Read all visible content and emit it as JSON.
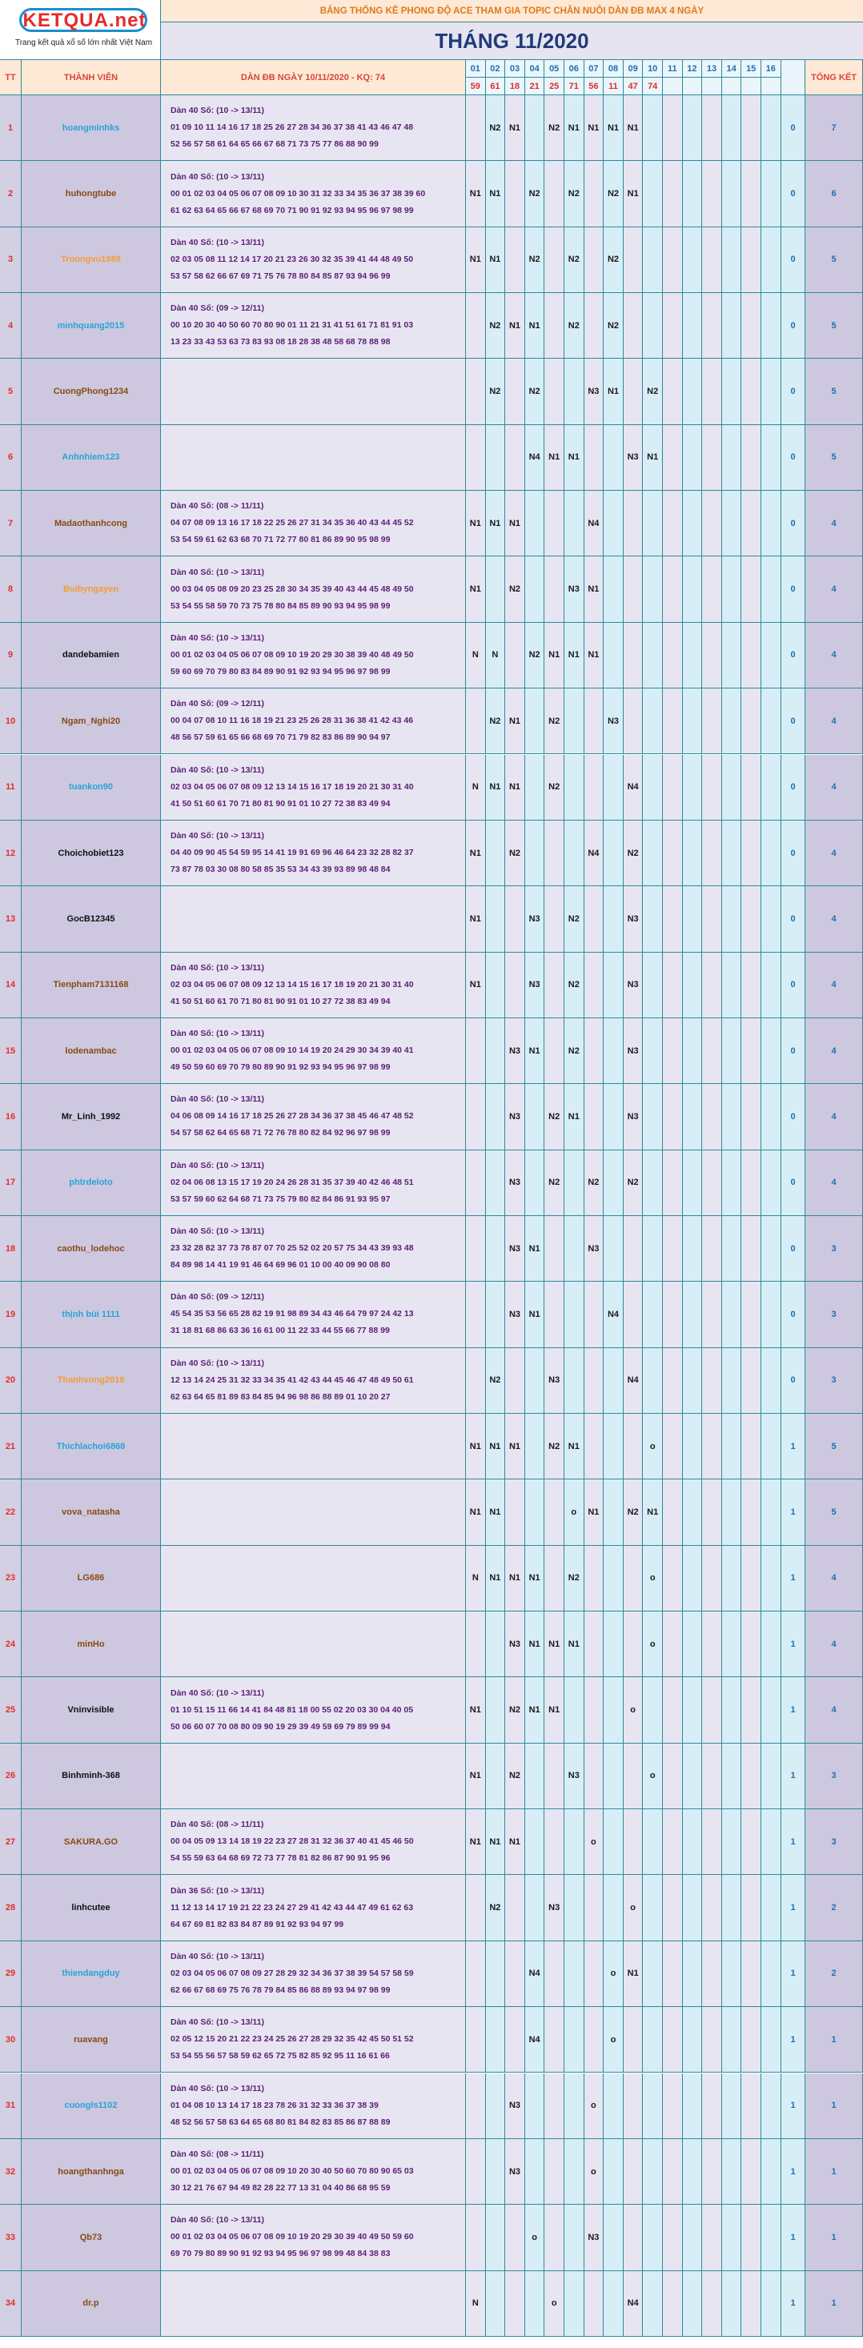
{
  "logo": {
    "brand": "KETQUA.net",
    "tagline": "Trang kết quả xổ số lớn nhất Việt Nam"
  },
  "banner": "BẢNG THỐNG KÊ PHONG ĐỘ ACE THAM GIA TOPIC CHĂN NUÔI DÀN ĐB MAX 4 NGÀY",
  "month": "THÁNG 11/2020",
  "headers": {
    "tt": "TT",
    "member": "THÀNH VIÊN",
    "selection": "DÀN ĐB NGÀY 10/11/2020 - KQ: 74",
    "total": "TỔNG KẾT"
  },
  "days": [
    "01",
    "02",
    "03",
    "04",
    "05",
    "06",
    "07",
    "08",
    "09",
    "10",
    "11",
    "12",
    "13",
    "14",
    "15",
    "16"
  ],
  "results": [
    "59",
    "61",
    "18",
    "21",
    "25",
    "71",
    "56",
    "11",
    "47",
    "74",
    "",
    "",
    "",
    "",
    "",
    ""
  ],
  "colors": {
    "blue": "#29a3d6",
    "brown": "#8a4a10",
    "black": "#111111",
    "orange": "#f39c35",
    "purple": "#5b1f73"
  },
  "rows": [
    {
      "tt": "1",
      "name": "hoangminhks",
      "color": "blue",
      "sel_title": "Dàn 40 Số: (10 -> 13/11)",
      "sel_l1": "01 09 10 11 14 16 17 18 25 26 27 28 34 36 37 38 41 43 46 47 48",
      "sel_l2": "52 56 57 58 61 64 65 66 67 68 71 73 75 77 86 88 90 99",
      "marks": [
        "",
        "N2",
        "N1",
        "",
        "N2",
        "N1",
        "N1",
        "N1",
        "N1",
        "",
        "",
        "",
        "",
        "",
        "",
        ""
      ],
      "win": "0",
      "total": "7"
    },
    {
      "tt": "2",
      "name": "huhongtube",
      "color": "brown",
      "sel_title": "Dàn 40 Số: (10 -> 13/11)",
      "sel_l1": "00 01 02 03 04 05 06 07 08 09 10 30 31 32 33 34 35 36 37 38 39 60",
      "sel_l2": "61 62 63 64 65 66 67 68 69 70 71 90 91 92 93 94 95 96 97 98 99",
      "marks": [
        "N1",
        "N1",
        "",
        "N2",
        "",
        "N2",
        "",
        "N2",
        "N1",
        "",
        "",
        "",
        "",
        "",
        "",
        ""
      ],
      "win": "0",
      "total": "6"
    },
    {
      "tt": "3",
      "name": "Truongvu1988",
      "color": "orange",
      "sel_title": "Dàn 40 Số: (10 -> 13/11)",
      "sel_l1": "02 03 05 08 11 12 14 17 20 21 23 26 30 32 35 39 41 44 48 49 50",
      "sel_l2": "53 57 58 62 66 67 69 71 75 76 78 80 84 85 87 93 94 96 99",
      "marks": [
        "N1",
        "N1",
        "",
        "N2",
        "",
        "N2",
        "",
        "N2",
        "",
        "",
        "",
        "",
        "",
        "",
        "",
        ""
      ],
      "win": "0",
      "total": "5"
    },
    {
      "tt": "4",
      "name": "minhquang2015",
      "color": "blue",
      "sel_title": "Dàn 40 Số: (09 -> 12/11)",
      "sel_l1": "00 10 20 30 40 50 60 70 80 90 01 11 21 31 41 51 61 71 81 91 03",
      "sel_l2": "13 23 33 43 53 63 73 83 93 08 18 28 38 48 58 68 78 88 98",
      "marks": [
        "",
        "N2",
        "N1",
        "N1",
        "",
        "N2",
        "",
        "N2",
        "",
        "",
        "",
        "",
        "",
        "",
        "",
        ""
      ],
      "win": "0",
      "total": "5"
    },
    {
      "tt": "5",
      "name": "CuongPhong1234",
      "color": "brown",
      "sel_title": "",
      "sel_l1": "",
      "sel_l2": "",
      "marks": [
        "",
        "N2",
        "",
        "N2",
        "",
        "",
        "N3",
        "N1",
        "",
        "N2",
        "",
        "",
        "",
        "",
        "",
        ""
      ],
      "win": "0",
      "total": "5"
    },
    {
      "tt": "6",
      "name": "Anhnhiem123",
      "color": "blue",
      "sel_title": "",
      "sel_l1": "",
      "sel_l2": "",
      "marks": [
        "",
        "",
        "",
        "N4",
        "N1",
        "N1",
        "",
        "",
        "N3",
        "N1",
        "",
        "",
        "",
        "",
        "",
        ""
      ],
      "win": "0",
      "total": "5"
    },
    {
      "tt": "7",
      "name": "Madaothanhcong",
      "color": "brown",
      "sel_title": "Dàn 40 Số: (08 -> 11/11)",
      "sel_l1": "04 07 08 09 13 16 17 18 22 25 26 27 31 34 35 36 40 43 44 45 52",
      "sel_l2": "53 54 59 61 62 63 68 70 71 72 77 80 81 86 89 90 95 98 99",
      "marks": [
        "N1",
        "N1",
        "N1",
        "",
        "",
        "",
        "N4",
        "",
        "",
        "",
        "",
        "",
        "",
        "",
        "",
        ""
      ],
      "win": "0",
      "total": "4"
    },
    {
      "tt": "8",
      "name": "Buibyngayen",
      "color": "orange",
      "sel_title": "Dàn 40 Số: (10 -> 13/11)",
      "sel_l1": "00 03 04 05 08 09 20 23 25 28 30 34 35 39 40 43 44 45 48 49 50",
      "sel_l2": "53 54 55 58 59 70 73 75 78 80 84 85 89 90 93 94 95 98 99",
      "marks": [
        "N1",
        "",
        "N2",
        "",
        "",
        "N3",
        "N1",
        "",
        "",
        "",
        "",
        "",
        "",
        "",
        "",
        ""
      ],
      "win": "0",
      "total": "4"
    },
    {
      "tt": "9",
      "name": "dandebamien",
      "color": "black",
      "sel_title": "Dàn 40 Số: (10 -> 13/11)",
      "sel_l1": "00 01 02 03 04 05 06 07 08 09 10 19 20 29 30 38 39 40 48 49 50",
      "sel_l2": "59 60 69 70 79 80 83 84 89 90 91 92 93 94 95 96 97 98 99",
      "marks": [
        "N",
        "N",
        "",
        "N2",
        "N1",
        "N1",
        "N1",
        "",
        "",
        "",
        "",
        "",
        "",
        "",
        "",
        ""
      ],
      "win": "0",
      "total": "4"
    },
    {
      "tt": "10",
      "name": "Ngam_Nghi20",
      "color": "brown",
      "sel_title": "Dàn 40 Số: (09 -> 12/11)",
      "sel_l1": "00 04 07 08 10 11 16 18 19 21 23 25 26 28 31 36 38 41 42 43 46",
      "sel_l2": "48 56 57 59 61 65 66 68 69 70 71 79 82 83 86 89 90 94 97",
      "marks": [
        "",
        "N2",
        "N1",
        "",
        "N2",
        "",
        "",
        "N3",
        "",
        "",
        "",
        "",
        "",
        "",
        "",
        ""
      ],
      "win": "0",
      "total": "4"
    },
    {
      "tt": "11",
      "name": "tuankon90",
      "color": "blue",
      "sel_title": "Dàn 40 Số: (10 -> 13/11)",
      "sel_l1": "02 03 04 05 06 07 08 09 12 13 14 15 16 17 18 19 20 21 30 31 40",
      "sel_l2": "41 50 51 60 61 70 71 80 81 90 91 01 10 27 72 38 83 49 94",
      "marks": [
        "N",
        "N1",
        "N1",
        "",
        "N2",
        "",
        "",
        "",
        "N4",
        "",
        "",
        "",
        "",
        "",
        "",
        ""
      ],
      "win": "0",
      "total": "4"
    },
    {
      "tt": "12",
      "name": "Choichobiet123",
      "color": "black",
      "sel_title": "Dàn 40 Số: (10 -> 13/11)",
      "sel_l1": "04 40 09 90 45 54 59 95 14 41 19 91 69 96 46 64 23 32 28 82 37",
      "sel_l2": "73 87 78 03 30 08 80 58 85 35 53 34 43 39 93 89 98 48 84",
      "marks": [
        "N1",
        "",
        "N2",
        "",
        "",
        "",
        "N4",
        "",
        "N2",
        "",
        "",
        "",
        "",
        "",
        "",
        ""
      ],
      "win": "0",
      "total": "4"
    },
    {
      "tt": "13",
      "name": "GocB12345",
      "color": "black",
      "sel_title": "",
      "sel_l1": "",
      "sel_l2": "",
      "marks": [
        "N1",
        "",
        "",
        "N3",
        "",
        "N2",
        "",
        "",
        "N3",
        "",
        "",
        "",
        "",
        "",
        "",
        ""
      ],
      "win": "0",
      "total": "4"
    },
    {
      "tt": "14",
      "name": "Tienpham7131168",
      "color": "brown",
      "sel_title": "Dàn 40 Số: (10 -> 13/11)",
      "sel_l1": "02 03 04 05 06 07 08 09 12 13 14 15 16 17 18 19 20 21 30 31 40",
      "sel_l2": "41 50 51 60 61 70 71 80 81 90 91 01 10 27 72 38 83 49 94",
      "marks": [
        "N1",
        "",
        "",
        "N3",
        "",
        "N2",
        "",
        "",
        "N3",
        "",
        "",
        "",
        "",
        "",
        "",
        ""
      ],
      "win": "0",
      "total": "4"
    },
    {
      "tt": "15",
      "name": "lodenambac",
      "color": "brown",
      "sel_title": "Dàn 40 Số: (10 -> 13/11)",
      "sel_l1": "00 01 02 03 04 05 06 07 08 09 10 14 19 20 24 29 30 34 39 40 41",
      "sel_l2": "49 50 59 60 69 70 79 80 89 90 91 92 93 94 95 96 97 98 99",
      "marks": [
        "",
        "",
        "N3",
        "N1",
        "",
        "N2",
        "",
        "",
        "N3",
        "",
        "",
        "",
        "",
        "",
        "",
        ""
      ],
      "win": "0",
      "total": "4"
    },
    {
      "tt": "16",
      "name": "Mr_Linh_1992",
      "color": "black",
      "sel_title": "Dàn 40 Số: (10 -> 13/11)",
      "sel_l1": "04 06 08 09 14 16 17 18 25 26 27 28 34 36 37 38 45 46 47 48 52",
      "sel_l2": "54 57 58 62 64 65 68 71 72 76 78 80 82 84 92 96 97 98 99",
      "marks": [
        "",
        "",
        "N3",
        "",
        "N2",
        "N1",
        "",
        "",
        "N3",
        "",
        "",
        "",
        "",
        "",
        "",
        ""
      ],
      "win": "0",
      "total": "4"
    },
    {
      "tt": "17",
      "name": "phtrdeloto",
      "color": "blue",
      "sel_title": "Dàn 40 Số: (10 -> 13/11)",
      "sel_l1": "02 04 06 08 13 15 17 19 20 24 26 28 31 35 37 39 40 42 46 48 51",
      "sel_l2": "53 57 59 60 62 64 68 71 73 75 79 80 82 84 86 91 93 95 97",
      "marks": [
        "",
        "",
        "N3",
        "",
        "N2",
        "",
        "N2",
        "",
        "N2",
        "",
        "",
        "",
        "",
        "",
        "",
        ""
      ],
      "win": "0",
      "total": "4"
    },
    {
      "tt": "18",
      "name": "caothu_lodehoc",
      "color": "brown",
      "sel_title": "Dàn 40 Số: (10 -> 13/11)",
      "sel_l1": "23 32 28 82 37 73 78 87 07 70 25 52 02 20 57 75 34 43 39 93 48",
      "sel_l2": "84 89 98 14 41 19 91 46 64 69 96 01 10 00 40 09 90 08 80",
      "marks": [
        "",
        "",
        "N3",
        "N1",
        "",
        "",
        "N3",
        "",
        "",
        "",
        "",
        "",
        "",
        "",
        "",
        ""
      ],
      "win": "0",
      "total": "3"
    },
    {
      "tt": "19",
      "name": "thịnh bùi 1111",
      "color": "blue",
      "sel_title": "Dàn 40 Số: (09 -> 12/11)",
      "sel_l1": "45 54 35 53 56 65 28 82 19 91 98 89 34 43 46 64 79 97 24 42 13",
      "sel_l2": "31 18 81 68 86 63 36 16 61 00 11 22 33 44 55 66 77 88 99",
      "marks": [
        "",
        "",
        "N3",
        "N1",
        "",
        "",
        "",
        "N4",
        "",
        "",
        "",
        "",
        "",
        "",
        "",
        ""
      ],
      "win": "0",
      "total": "3"
    },
    {
      "tt": "20",
      "name": "Thanhvong2018",
      "color": "orange",
      "sel_title": "Dàn 40 Số: (10 -> 13/11)",
      "sel_l1": "12 13 14 24 25 31 32 33 34 35 41 42 43 44 45 46 47 48 49 50 61",
      "sel_l2": "62 63 64 65 81 89 83 84 85 94 96 98 86 88 89 01 10 20 27",
      "marks": [
        "",
        "N2",
        "",
        "",
        "N3",
        "",
        "",
        "",
        "N4",
        "",
        "",
        "",
        "",
        "",
        "",
        ""
      ],
      "win": "0",
      "total": "3"
    },
    {
      "tt": "21",
      "name": "Thichlachoi6868",
      "color": "blue",
      "sel_title": "",
      "sel_l1": "",
      "sel_l2": "",
      "marks": [
        "N1",
        "N1",
        "N1",
        "",
        "N2",
        "N1",
        "",
        "",
        "",
        "o",
        "",
        "",
        "",
        "",
        "",
        ""
      ],
      "win": "1",
      "total": "5"
    },
    {
      "tt": "22",
      "name": "vova_natasha",
      "color": "brown",
      "sel_title": "",
      "sel_l1": "",
      "sel_l2": "",
      "marks": [
        "N1",
        "N1",
        "",
        "",
        "",
        "o",
        "N1",
        "",
        "N2",
        "N1",
        "",
        "",
        "",
        "",
        "",
        ""
      ],
      "win": "1",
      "total": "5"
    },
    {
      "tt": "23",
      "name": "LG686",
      "color": "brown",
      "sel_title": "",
      "sel_l1": "",
      "sel_l2": "",
      "marks": [
        "N",
        "N1",
        "N1",
        "N1",
        "",
        "N2",
        "",
        "",
        "",
        "o",
        "",
        "",
        "",
        "",
        "",
        ""
      ],
      "win": "1",
      "total": "4"
    },
    {
      "tt": "24",
      "name": "minHo",
      "color": "brown",
      "sel_title": "",
      "sel_l1": "",
      "sel_l2": "",
      "marks": [
        "",
        "",
        "N3",
        "N1",
        "N1",
        "N1",
        "",
        "",
        "",
        "o",
        "",
        "",
        "",
        "",
        "",
        ""
      ],
      "win": "1",
      "total": "4"
    },
    {
      "tt": "25",
      "name": "Vninvisible",
      "color": "black",
      "sel_title": "Dàn 40 Số: (10 -> 13/11)",
      "sel_l1": "01 10 51 15 11 66 14 41 84 48 81 18 00 55 02 20 03 30 04 40 05",
      "sel_l2": "50 06 60 07 70 08 80 09 90 19 29 39 49 59 69 79 89 99 94",
      "marks": [
        "N1",
        "",
        "N2",
        "N1",
        "N1",
        "",
        "",
        "",
        "o",
        "",
        "",
        "",
        "",
        "",
        "",
        ""
      ],
      "win": "1",
      "total": "4"
    },
    {
      "tt": "26",
      "name": "Binhminh-368",
      "color": "black",
      "sel_title": "",
      "sel_l1": "",
      "sel_l2": "",
      "marks": [
        "N1",
        "",
        "N2",
        "",
        "",
        "N3",
        "",
        "",
        "",
        "o",
        "",
        "",
        "",
        "",
        "",
        ""
      ],
      "win": "1",
      "total": "3"
    },
    {
      "tt": "27",
      "name": "SAKURA.GO",
      "color": "brown",
      "sel_title": "Dàn 40 Số: (08 -> 11/11)",
      "sel_l1": "00 04 05 09 13 14 18 19 22 23 27 28 31 32 36 37 40 41 45 46 50",
      "sel_l2": "54 55 59 63 64 68 69 72 73 77 78 81 82 86 87 90 91 95 96",
      "marks": [
        "N1",
        "N1",
        "N1",
        "",
        "",
        "",
        "o",
        "",
        "",
        "",
        "",
        "",
        "",
        "",
        "",
        ""
      ],
      "win": "1",
      "total": "3"
    },
    {
      "tt": "28",
      "name": "linhcutee",
      "color": "black",
      "sel_title": "Dàn 36 Số: (10 -> 13/11)",
      "sel_l1": "11 12 13 14 17 19 21 22 23 24 27 29 41 42 43 44 47 49 61 62 63",
      "sel_l2": "64 67 69 81 82 83 84 87 89 91 92 93 94 97 99",
      "marks": [
        "",
        "N2",
        "",
        "",
        "N3",
        "",
        "",
        "",
        "o",
        "",
        "",
        "",
        "",
        "",
        "",
        ""
      ],
      "win": "1",
      "total": "2"
    },
    {
      "tt": "29",
      "name": "thiendangduy",
      "color": "blue",
      "sel_title": "Dàn 40 Số: (10 -> 13/11)",
      "sel_l1": "02 03 04 05 06 07 08 09 27 28 29 32 34 36 37 38 39 54 57 58 59",
      "sel_l2": "62 66 67 68 69 75 76 78 79 84 85 86 88 89 93 94 97 98 99",
      "marks": [
        "",
        "",
        "",
        "N4",
        "",
        "",
        "",
        "o",
        "N1",
        "",
        "",
        "",
        "",
        "",
        "",
        ""
      ],
      "win": "1",
      "total": "2"
    },
    {
      "tt": "30",
      "name": "ruavang",
      "color": "brown",
      "sel_title": "Dàn 40 Số: (10 -> 13/11)",
      "sel_l1": "02 05 12 15 20 21 22 23 24 25 26 27 28 29 32 35 42 45 50 51 52",
      "sel_l2": "53 54 55 56 57 58 59 62 65 72 75 82 85 92 95 11 16 61 66",
      "marks": [
        "",
        "",
        "",
        "N4",
        "",
        "",
        "",
        "o",
        "",
        "",
        "",
        "",
        "",
        "",
        "",
        ""
      ],
      "win": "1",
      "total": "1"
    },
    {
      "tt": "31",
      "name": "cuongls1102",
      "color": "blue",
      "sel_title": "Dàn 40 Số: (10 -> 13/11)",
      "sel_l1": "01 04 08 10 13 14 17 18 23 78 26 31 32 33 36 37 38 39",
      "sel_l2": "48 52 56 57 58 63 64 65 68 80 81 84 82 83 85 86 87 88 89",
      "marks": [
        "",
        "",
        "N3",
        "",
        "",
        "",
        "o",
        "",
        "",
        "",
        "",
        "",
        "",
        "",
        "",
        ""
      ],
      "win": "1",
      "total": "1"
    },
    {
      "tt": "32",
      "name": "hoangthanhnga",
      "color": "brown",
      "sel_title": "Dàn 40 Số: (08 -> 11/11)",
      "sel_l1": "00 01 02 03 04 05 06 07 08 09 10 20 30 40 50 60 70 80 90 65 03",
      "sel_l2": "30 12 21 76 67 94 49 82 28 22 77 13 31 04 40 86 68 95 59",
      "marks": [
        "",
        "",
        "N3",
        "",
        "",
        "",
        "o",
        "",
        "",
        "",
        "",
        "",
        "",
        "",
        "",
        ""
      ],
      "win": "1",
      "total": "1"
    },
    {
      "tt": "33",
      "name": "Qb73",
      "color": "brown",
      "sel_title": "Dàn 40 Số: (10 -> 13/11)",
      "sel_l1": "00 01 02 03 04 05 06 07 08 09 10 19 20 29 30 39 40 49 50 59 60",
      "sel_l2": "69 70 79 80 89 90 91 92 93 94 95 96 97 98 99 48 84 38 83",
      "marks": [
        "",
        "",
        "",
        "o",
        "",
        "",
        "N3",
        "",
        "",
        "",
        "",
        "",
        "",
        "",
        "",
        ""
      ],
      "win": "1",
      "total": "1"
    },
    {
      "tt": "34",
      "name": "dr.p",
      "color": "brown",
      "sel_title": "",
      "sel_l1": "",
      "sel_l2": "",
      "marks": [
        "N",
        "",
        "",
        "",
        "o",
        "",
        "",
        "",
        "N4",
        "",
        "",
        "",
        "",
        "",
        "",
        ""
      ],
      "win": "1",
      "total": "1"
    }
  ]
}
